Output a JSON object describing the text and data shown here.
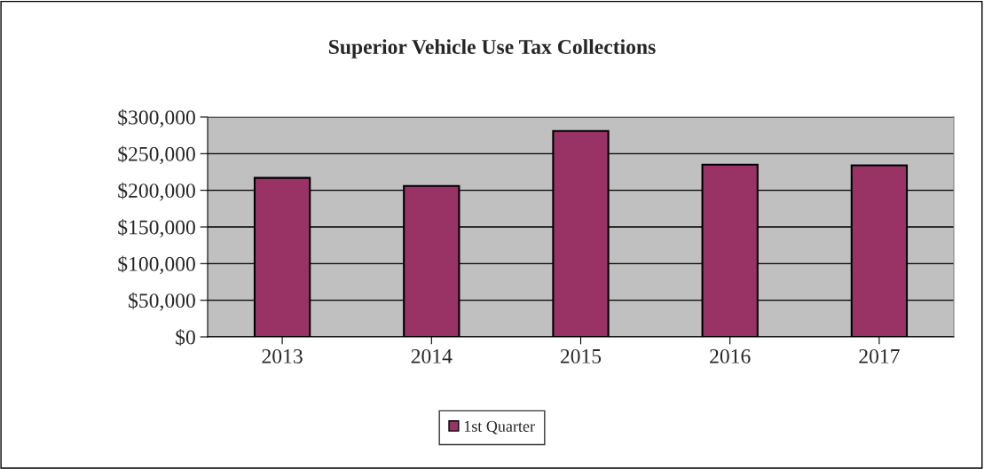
{
  "chart_data": {
    "type": "bar",
    "title": "Superior Vehicle Use Tax Collections",
    "categories": [
      "2013",
      "2014",
      "2015",
      "2016",
      "2017"
    ],
    "series": [
      {
        "name": "1st Quarter",
        "color": "#993366",
        "values": [
          217000,
          206000,
          281000,
          235000,
          234000
        ]
      }
    ],
    "ylim": [
      0,
      300000
    ],
    "yticks": [
      {
        "value": 0,
        "label": "$0"
      },
      {
        "value": 50000,
        "label": "$50,000"
      },
      {
        "value": 100000,
        "label": "$100,000"
      },
      {
        "value": 150000,
        "label": "$150,000"
      },
      {
        "value": 200000,
        "label": "$200,000"
      },
      {
        "value": 250000,
        "label": "$250,000"
      },
      {
        "value": 300000,
        "label": "$300,000"
      }
    ],
    "grid": "y",
    "legend": "bottom"
  }
}
